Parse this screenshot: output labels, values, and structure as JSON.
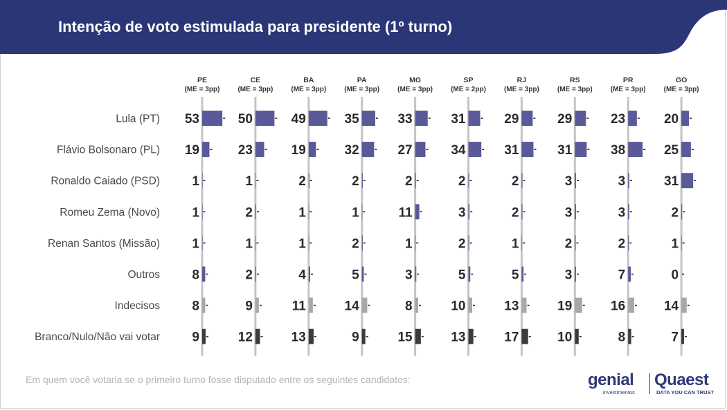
{
  "header": {
    "title": "Intenção de voto estimulada para presidente (1º turno)",
    "color": "#2b3677"
  },
  "footer": {
    "question": "Em quem você votaria se o primeiro turno fosse disputado entre os seguintes candidatos:",
    "logo_genial": "genial",
    "logo_genial_sub": "investimentos",
    "logo_quaest": "Quaest",
    "logo_quaest_sub": "DATA YOU CAN TRUST"
  },
  "colors": {
    "candidate_bar": "#5b5a98",
    "indecisos_bar": "#a8a8a8",
    "branco_bar": "#3b3b3b",
    "axis": "#c4c4c4",
    "value_text": "#2a2a2a",
    "label_text": "#4a4a4a"
  },
  "chart_data": {
    "type": "bar",
    "orientation": "horizontal-small-multiples",
    "unit": "%",
    "states": [
      {
        "code": "PE",
        "margin": "(ME = 3pp)"
      },
      {
        "code": "CE",
        "margin": "(ME = 3pp)"
      },
      {
        "code": "BA",
        "margin": "(ME = 3pp)"
      },
      {
        "code": "PA",
        "margin": "(ME = 3pp)"
      },
      {
        "code": "MG",
        "margin": "(ME = 3pp)"
      },
      {
        "code": "SP",
        "margin": "(ME = 2pp)"
      },
      {
        "code": "RJ",
        "margin": "(ME = 3pp)"
      },
      {
        "code": "RS",
        "margin": "(ME = 3pp)"
      },
      {
        "code": "PR",
        "margin": "(ME = 3pp)"
      },
      {
        "code": "GO",
        "margin": "(ME = 3pp)"
      }
    ],
    "series": [
      {
        "name": "Lula (PT)",
        "kind": "candidate",
        "values": [
          53,
          50,
          49,
          35,
          33,
          31,
          29,
          29,
          23,
          20
        ]
      },
      {
        "name": "Flávio Bolsonaro (PL)",
        "kind": "candidate",
        "values": [
          19,
          23,
          19,
          32,
          27,
          34,
          31,
          31,
          38,
          25
        ]
      },
      {
        "name": "Ronaldo Caiado (PSD)",
        "kind": "candidate",
        "values": [
          1,
          1,
          2,
          2,
          2,
          2,
          2,
          3,
          3,
          31
        ]
      },
      {
        "name": "Romeu Zema (Novo)",
        "kind": "candidate",
        "values": [
          1,
          2,
          1,
          1,
          11,
          3,
          2,
          3,
          3,
          2
        ]
      },
      {
        "name": "Renan Santos (Missão)",
        "kind": "candidate",
        "values": [
          1,
          1,
          1,
          2,
          1,
          2,
          1,
          2,
          2,
          1
        ]
      },
      {
        "name": "Outros",
        "kind": "candidate",
        "values": [
          8,
          2,
          4,
          5,
          3,
          5,
          5,
          3,
          7,
          0
        ]
      },
      {
        "name": "Indecisos",
        "kind": "indecisos",
        "values": [
          8,
          9,
          11,
          14,
          8,
          10,
          13,
          19,
          16,
          14
        ]
      },
      {
        "name": "Branco/Nulo/Não vai votar",
        "kind": "branco",
        "values": [
          9,
          12,
          13,
          9,
          15,
          13,
          17,
          10,
          8,
          7
        ]
      }
    ]
  }
}
